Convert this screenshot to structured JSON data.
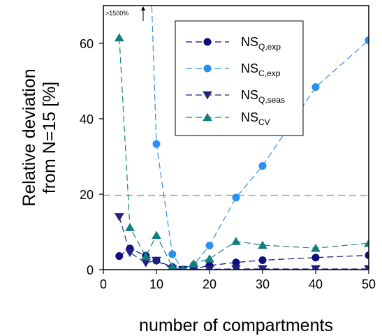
{
  "chart_data": {
    "type": "line",
    "xlabel": "number of compartments",
    "ylabel_lines": [
      "Relative deviation",
      "from N=15 [%]"
    ],
    "xlim": [
      0,
      50
    ],
    "ylim": [
      0,
      70
    ],
    "x_ticks": [
      0,
      10,
      20,
      30,
      40,
      50
    ],
    "y_ticks": [
      0,
      20,
      40,
      60
    ],
    "reference_line": {
      "y": 19.7,
      "style": "dashed",
      "color": "#9e9e9e"
    },
    "annotation": {
      "text": ">1500%",
      "arrow_x": 7.5
    },
    "legend_placement": "top-right",
    "series": [
      {
        "name": "NS",
        "subscript": "Q,exp",
        "color": "#0d0d7e",
        "marker": "circle",
        "x": [
          3,
          5,
          8,
          10,
          13,
          15,
          17,
          20,
          25,
          30,
          40,
          50
        ],
        "y": [
          3.6,
          5.6,
          3.7,
          2.4,
          0.7,
          0,
          0.2,
          1.1,
          1.9,
          2.5,
          3.2,
          3.8
        ]
      },
      {
        "name": "NS",
        "subscript": "C,exp",
        "color": "#2c8ff0",
        "marker": "circle",
        "x": [
          9,
          10,
          13,
          15,
          17,
          20,
          25,
          30,
          40,
          50
        ],
        "y": [
          75,
          33.3,
          4.1,
          0,
          1.2,
          6.4,
          19.1,
          27.5,
          48.4,
          60.8
        ]
      },
      {
        "name": "NS",
        "subscript": "Q,seas",
        "color": "#23237f",
        "marker": "triangle-down",
        "x": [
          3,
          5,
          8,
          10,
          13,
          15,
          17,
          20,
          25,
          30,
          40,
          50
        ],
        "y": [
          14,
          4.5,
          1.8,
          2.4,
          0.2,
          0,
          0.1,
          0.1,
          0.2,
          0.2,
          0.2,
          0.2
        ]
      },
      {
        "name": "NS",
        "subscript": "CV",
        "color": "#127e7e",
        "marker": "triangle-up",
        "x": [
          3,
          5,
          8,
          10,
          13,
          15,
          17,
          20,
          25,
          30,
          40,
          50
        ],
        "y": [
          61.5,
          11.2,
          3.5,
          9.1,
          0.8,
          0,
          1.6,
          2.9,
          7.5,
          6.5,
          5.7,
          7
        ]
      }
    ]
  }
}
